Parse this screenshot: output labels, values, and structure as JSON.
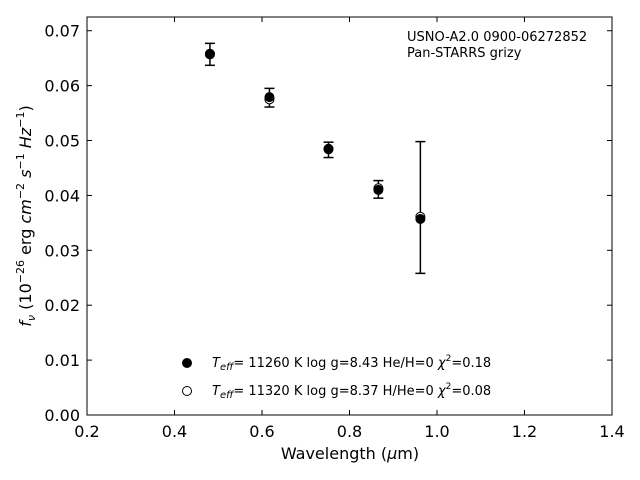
{
  "chart_data": {
    "type": "scatter",
    "title": "",
    "xlabel": "Wavelength (μm)",
    "ylabel": "f_ν (10^-26 erg cm^-2 s^-1 Hz^-1)",
    "xlim": [
      0.2,
      1.4
    ],
    "ylim": [
      0.0,
      0.0725
    ],
    "x_ticks": [
      "0.2",
      "0.4",
      "0.6",
      "0.8",
      "1.0",
      "1.2",
      "1.4"
    ],
    "y_ticks": [
      "0.00",
      "0.01",
      "0.02",
      "0.03",
      "0.04",
      "0.05",
      "0.06",
      "0.07"
    ],
    "annotations": [
      "USNO-A2.0 0900-06272852",
      "Pan-STARRS grizy"
    ],
    "grid": false,
    "legend_position": "lower-center",
    "observed": {
      "x": [
        0.481,
        0.617,
        0.752,
        0.866,
        0.962
      ],
      "y": [
        0.0657,
        0.0578,
        0.0483,
        0.0411,
        0.0378
      ],
      "yerr": [
        0.002,
        0.0017,
        0.0014,
        0.0016,
        0.012
      ]
    },
    "series": [
      {
        "name": "T_eff= 11260 K  log g=8.43  He/H=0  χ²=0.18",
        "marker": "filled-circle",
        "x": [
          0.481,
          0.617,
          0.752,
          0.866,
          0.962
        ],
        "y": [
          0.0658,
          0.0579,
          0.0485,
          0.041,
          0.0357
        ]
      },
      {
        "name": "T_eff= 11320 K  log g=8.37  H/He=0  χ²=0.08",
        "marker": "open-circle",
        "x": [
          0.481,
          0.617,
          0.752,
          0.866,
          0.962
        ],
        "y": [
          0.0657,
          0.0575,
          0.0484,
          0.0413,
          0.0361
        ]
      }
    ],
    "colors": {
      "marker": "#000000",
      "axis": "#000000"
    }
  }
}
